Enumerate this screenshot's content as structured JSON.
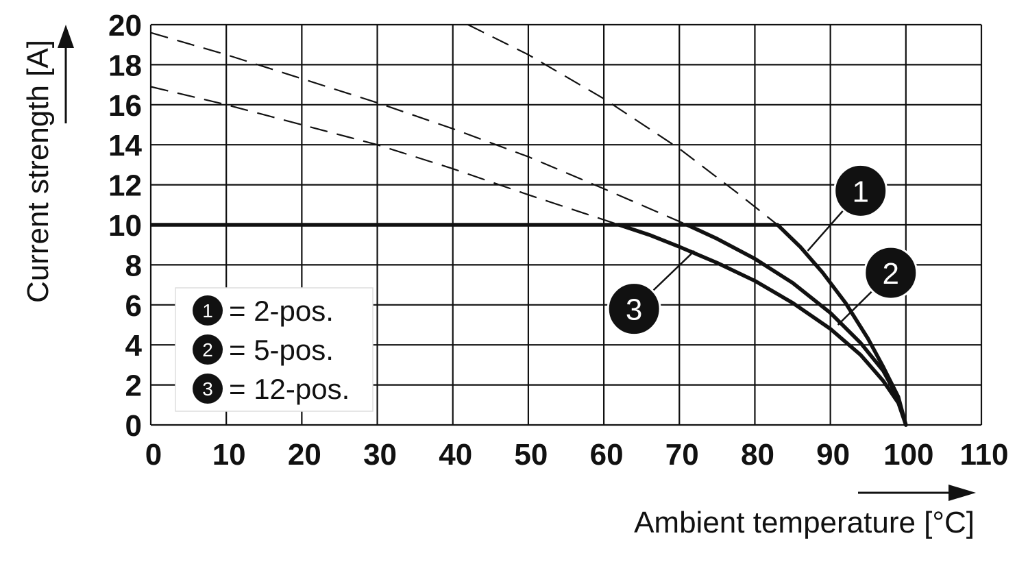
{
  "chart_data": {
    "type": "line",
    "xlabel": "Ambient temperature [°C]",
    "ylabel": "Current strength [A]",
    "xlim": [
      0,
      110
    ],
    "ylim": [
      0,
      20
    ],
    "x_ticks": [
      "0",
      "10",
      "20",
      "30",
      "40",
      "50",
      "60",
      "70",
      "80",
      "90",
      "100",
      "110"
    ],
    "y_ticks": [
      "0",
      "2",
      "4",
      "6",
      "8",
      "10",
      "12",
      "14",
      "16",
      "18",
      "20"
    ],
    "grid": true,
    "legend_position": "bottom-left",
    "legend": [
      {
        "marker": "1",
        "text": "= 2-pos."
      },
      {
        "marker": "2",
        "text": "= 5-pos."
      },
      {
        "marker": "3",
        "text": "= 12-pos."
      }
    ],
    "limit_line": {
      "y": 10,
      "x": [
        0,
        83
      ]
    },
    "series": [
      {
        "marker": "1",
        "solid": {
          "x": [
            83,
            86,
            89,
            92,
            95,
            97,
            99,
            100
          ],
          "y": [
            10,
            8.9,
            7.6,
            6.1,
            4.3,
            2.9,
            1.4,
            0
          ]
        },
        "dashed": {
          "x": [
            42,
            50,
            60,
            70,
            78,
            83
          ],
          "y": [
            20,
            18.5,
            16.3,
            13.8,
            11.5,
            10
          ]
        }
      },
      {
        "marker": "2",
        "solid": {
          "x": [
            71,
            75,
            80,
            85,
            90,
            94,
            97,
            99,
            100
          ],
          "y": [
            10,
            9.3,
            8.3,
            7.1,
            5.6,
            4.1,
            2.7,
            1.3,
            0
          ]
        },
        "dashed": {
          "x": [
            0,
            10,
            20,
            30,
            40,
            50,
            60,
            71
          ],
          "y": [
            19.6,
            18.5,
            17.3,
            16.1,
            14.8,
            13.4,
            11.8,
            10
          ]
        }
      },
      {
        "marker": "3",
        "solid": {
          "x": [
            62,
            66,
            70,
            75,
            80,
            85,
            90,
            94,
            97,
            99,
            100
          ],
          "y": [
            10,
            9.5,
            8.9,
            8.1,
            7.2,
            6.1,
            4.8,
            3.5,
            2.2,
            1.1,
            0
          ]
        },
        "dashed": {
          "x": [
            0,
            10,
            20,
            30,
            40,
            50,
            62
          ],
          "y": [
            16.9,
            16,
            15,
            14,
            12.8,
            11.5,
            10
          ]
        }
      }
    ],
    "callouts": [
      {
        "marker": "1",
        "at": [
          87,
          8.7
        ],
        "label_pos": [
          94,
          11.7
        ]
      },
      {
        "marker": "2",
        "at": [
          91,
          5
        ],
        "label_pos": [
          98,
          7.6
        ]
      },
      {
        "marker": "3",
        "at": [
          72,
          8.7
        ],
        "label_pos": [
          64,
          5.8
        ]
      }
    ]
  }
}
